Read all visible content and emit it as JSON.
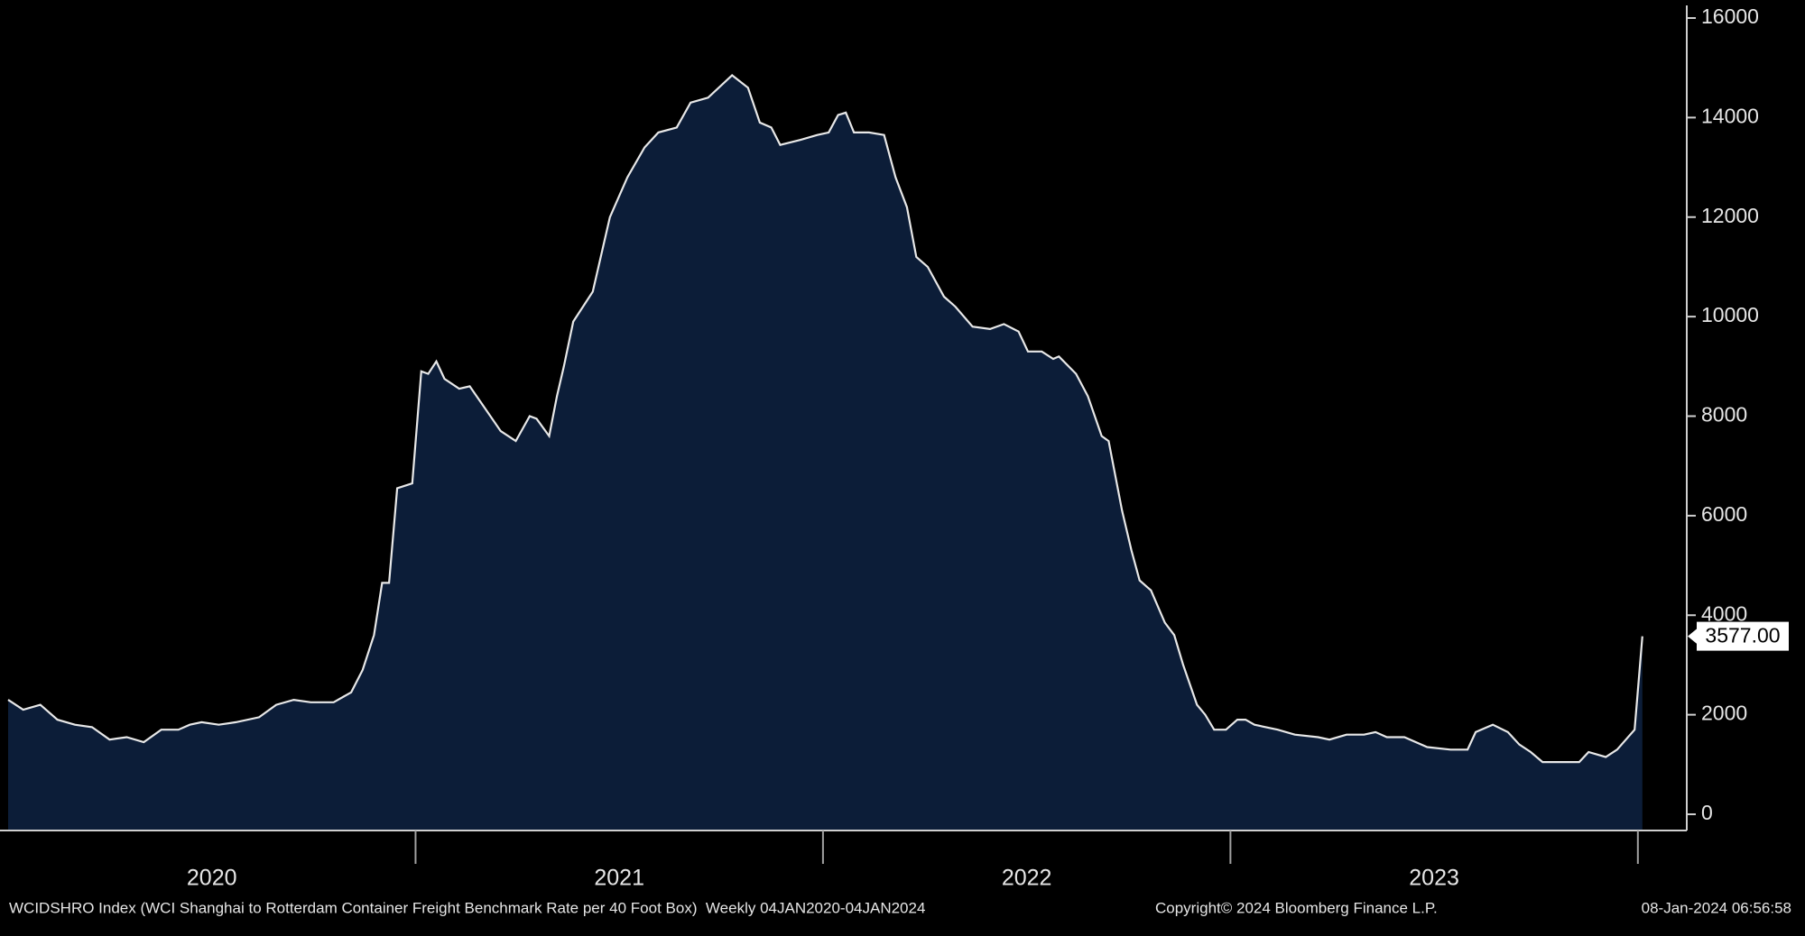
{
  "chart_data": {
    "type": "area",
    "series": [
      {
        "name": "WCIDSHRO Index",
        "color": "#0c1d38",
        "line_color": "#e8e8e8",
        "x": [
          2020.0,
          2020.037,
          2020.079,
          2020.121,
          2020.164,
          2020.206,
          2020.249,
          2020.291,
          2020.333,
          2020.376,
          2020.418,
          2020.446,
          2020.475,
          2020.517,
          2020.559,
          2020.616,
          2020.658,
          2020.701,
          2020.743,
          2020.799,
          2020.842,
          2020.87,
          2020.898,
          2020.918,
          2020.935,
          2020.955,
          2020.992,
          2021.014,
          2021.031,
          2021.051,
          2021.071,
          2021.107,
          2021.133,
          2021.167,
          2021.209,
          2021.246,
          2021.28,
          2021.297,
          2021.328,
          2021.347,
          2021.364,
          2021.387,
          2021.435,
          2021.477,
          2021.52,
          2021.562,
          2021.596,
          2021.641,
          2021.675,
          2021.718,
          2021.777,
          2021.816,
          2021.845,
          2021.873,
          2021.895,
          2021.944,
          2021.986,
          2022.014,
          2022.037,
          2022.056,
          2022.076,
          2022.113,
          2022.15,
          2022.178,
          2022.206,
          2022.229,
          2022.257,
          2022.297,
          2022.325,
          2022.367,
          2022.41,
          2022.444,
          2022.48,
          2022.503,
          2022.537,
          2022.565,
          2022.579,
          2022.621,
          2022.65,
          2022.684,
          2022.701,
          2022.734,
          2022.757,
          2022.777,
          2022.805,
          2022.839,
          2022.862,
          2022.884,
          2022.918,
          2022.938,
          2022.96,
          2022.989,
          2023.017,
          2023.037,
          2023.059,
          2023.116,
          2023.158,
          2023.215,
          2023.243,
          2023.285,
          2023.328,
          2023.356,
          2023.384,
          2023.427,
          2023.483,
          2023.54,
          2023.582,
          2023.602,
          2023.644,
          2023.681,
          2023.709,
          2023.737,
          2023.766,
          2023.799,
          2023.836,
          2023.856,
          2023.879,
          2023.921,
          2023.949,
          2023.992,
          2024.011
        ],
        "values": [
          2300,
          2100,
          2200,
          1900,
          1800,
          1750,
          1500,
          1550,
          1450,
          1700,
          1700,
          1800,
          1850,
          1800,
          1850,
          1950,
          2200,
          2300,
          2250,
          2250,
          2450,
          2900,
          3600,
          4650,
          4650,
          6550,
          6650,
          8900,
          8850,
          9100,
          8750,
          8550,
          8600,
          8200,
          7700,
          7500,
          8000,
          7950,
          7600,
          8400,
          9000,
          9900,
          10500,
          12000,
          12800,
          13400,
          13700,
          13800,
          14300,
          14400,
          14850,
          14600,
          13900,
          13800,
          13450,
          13550,
          13650,
          13700,
          14050,
          14100,
          13700,
          13700,
          13650,
          12800,
          12200,
          11200,
          11000,
          10400,
          10200,
          9800,
          9750,
          9850,
          9700,
          9300,
          9300,
          9150,
          9200,
          8850,
          8400,
          7600,
          7500,
          6100,
          5300,
          4700,
          4500,
          3850,
          3600,
          3000,
          2200,
          2000,
          1700,
          1700,
          1900,
          1900,
          1800,
          1700,
          1600,
          1550,
          1500,
          1600,
          1600,
          1650,
          1550,
          1550,
          1350,
          1300,
          1300,
          1650,
          1800,
          1650,
          1400,
          1250,
          1050,
          1050,
          1050,
          1050,
          1250,
          1150,
          1300,
          1700,
          3577
        ],
        "last_value_label": "3577.00"
      }
    ],
    "categories": [
      "2020",
      "2021",
      "2022",
      "2023"
    ],
    "xlim": [
      2020,
      2024.12
    ],
    "xticks": [
      2021,
      2022,
      2023,
      2024
    ],
    "ylim": [
      0,
      16000
    ],
    "yticks": [
      0,
      2000,
      4000,
      6000,
      8000,
      10000,
      12000,
      14000,
      16000
    ],
    "footer": {
      "description": "WCIDSHRO Index (WCI Shanghai to Rotterdam Container Freight Benchmark Rate per 40 Foot Box)  Weekly 04JAN2020-04JAN2024",
      "copyright": "Copyright© 2024 Bloomberg Finance L.P.",
      "timestamp": "08-Jan-2024 06:56:58"
    }
  }
}
